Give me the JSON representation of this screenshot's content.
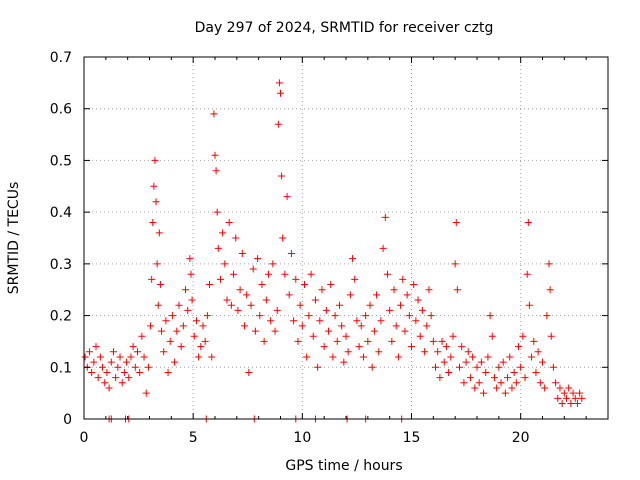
{
  "chart_data": {
    "type": "scatter",
    "title": "Day 297 of 2024, SRMTID for receiver cztg",
    "xlabel": "GPS time / hours",
    "ylabel": "SRMTID / TECUs",
    "xlim": [
      0,
      24
    ],
    "ylim": [
      0,
      0.7
    ],
    "xticks": [
      0,
      5,
      10,
      15,
      20
    ],
    "yticks": [
      0,
      0.1,
      0.2,
      0.3,
      0.4,
      0.5,
      0.6,
      0.7
    ],
    "grid": true,
    "marker": "+",
    "color": "#ff0000",
    "series": [
      {
        "name": "SRMTID",
        "points": [
          [
            0.05,
            0.12
          ],
          [
            0.15,
            0.1
          ],
          [
            0.25,
            0.13
          ],
          [
            0.35,
            0.09
          ],
          [
            0.45,
            0.11
          ],
          [
            0.55,
            0.14
          ],
          [
            0.65,
            0.08
          ],
          [
            0.75,
            0.12
          ],
          [
            0.85,
            0.1
          ],
          [
            0.95,
            0.07
          ],
          [
            1.05,
            0.09
          ],
          [
            1.15,
            0.06
          ],
          [
            1.25,
            0.11
          ],
          [
            1.35,
            0.13
          ],
          [
            1.45,
            0.08
          ],
          [
            1.55,
            0.1
          ],
          [
            1.65,
            0.12
          ],
          [
            1.75,
            0.07
          ],
          [
            1.85,
            0.09
          ],
          [
            1.95,
            0.11
          ],
          [
            2.05,
            0.08
          ],
          [
            2.15,
            0.12
          ],
          [
            2.25,
            0.14
          ],
          [
            2.35,
            0.1
          ],
          [
            2.45,
            0.13
          ],
          [
            2.55,
            0.09
          ],
          [
            2.65,
            0.16
          ],
          [
            2.75,
            0.12
          ],
          [
            2.85,
            0.05
          ],
          [
            2.95,
            0.1
          ],
          [
            3.05,
            0.18
          ],
          [
            3.1,
            0.27
          ],
          [
            3.15,
            0.38
          ],
          [
            3.2,
            0.45
          ],
          [
            3.25,
            0.5
          ],
          [
            3.3,
            0.42
          ],
          [
            3.35,
            0.3
          ],
          [
            3.4,
            0.22
          ],
          [
            3.45,
            0.36
          ],
          [
            3.5,
            0.26
          ],
          [
            3.55,
            0.17
          ],
          [
            3.65,
            0.13
          ],
          [
            3.75,
            0.19
          ],
          [
            3.85,
            0.09
          ],
          [
            3.95,
            0.15
          ],
          [
            4.05,
            0.2
          ],
          [
            4.15,
            0.11
          ],
          [
            4.25,
            0.17
          ],
          [
            4.35,
            0.22
          ],
          [
            4.45,
            0.14
          ],
          [
            4.55,
            0.18
          ],
          [
            4.65,
            0.25
          ],
          [
            4.75,
            0.21
          ],
          [
            4.85,
            0.31
          ],
          [
            4.9,
            0.28
          ],
          [
            4.95,
            0.23
          ],
          [
            5.05,
            0.16
          ],
          [
            5.15,
            0.19
          ],
          [
            5.25,
            0.12
          ],
          [
            5.35,
            0.14
          ],
          [
            5.45,
            0.18
          ],
          [
            5.55,
            0.15
          ],
          [
            5.65,
            0.2
          ],
          [
            5.75,
            0.26
          ],
          [
            5.85,
            0.12
          ],
          [
            5.95,
            0.59
          ],
          [
            6.0,
            0.51
          ],
          [
            6.05,
            0.48
          ],
          [
            6.1,
            0.4
          ],
          [
            6.15,
            0.33
          ],
          [
            6.25,
            0.27
          ],
          [
            6.35,
            0.36
          ],
          [
            6.45,
            0.3
          ],
          [
            6.55,
            0.23
          ],
          [
            6.65,
            0.38
          ],
          [
            6.75,
            0.22
          ],
          [
            6.85,
            0.28
          ],
          [
            6.95,
            0.35
          ],
          [
            7.05,
            0.21
          ],
          [
            7.15,
            0.25
          ],
          [
            7.25,
            0.32
          ],
          [
            7.35,
            0.18
          ],
          [
            7.45,
            0.24
          ],
          [
            7.55,
            0.09
          ],
          [
            7.65,
            0.22
          ],
          [
            7.75,
            0.29
          ],
          [
            7.85,
            0.17
          ],
          [
            7.95,
            0.31
          ],
          [
            8.05,
            0.2
          ],
          [
            8.15,
            0.26
          ],
          [
            8.25,
            0.15
          ],
          [
            8.35,
            0.23
          ],
          [
            8.45,
            0.28
          ],
          [
            8.55,
            0.19
          ],
          [
            8.65,
            0.3
          ],
          [
            8.75,
            0.17
          ],
          [
            8.85,
            0.21
          ],
          [
            8.9,
            0.57
          ],
          [
            8.95,
            0.65
          ],
          [
            9.0,
            0.63
          ],
          [
            9.05,
            0.47
          ],
          [
            9.1,
            0.35
          ],
          [
            9.2,
            0.28
          ],
          [
            9.3,
            0.43
          ],
          [
            9.4,
            0.24
          ],
          [
            9.5,
            0.32
          ],
          [
            9.6,
            0.19
          ],
          [
            9.7,
            0.27
          ],
          [
            9.8,
            0.15
          ],
          [
            9.9,
            0.22
          ],
          [
            10.0,
            0.18
          ],
          [
            10.1,
            0.26
          ],
          [
            10.2,
            0.12
          ],
          [
            10.3,
            0.2
          ],
          [
            10.4,
            0.28
          ],
          [
            10.5,
            0.16
          ],
          [
            10.6,
            0.23
          ],
          [
            10.7,
            0.1
          ],
          [
            10.8,
            0.19
          ],
          [
            10.9,
            0.25
          ],
          [
            11.0,
            0.14
          ],
          [
            11.1,
            0.21
          ],
          [
            11.2,
            0.17
          ],
          [
            11.3,
            0.26
          ],
          [
            11.4,
            0.12
          ],
          [
            11.5,
            0.2
          ],
          [
            11.6,
            0.15
          ],
          [
            11.7,
            0.22
          ],
          [
            11.8,
            0.18
          ],
          [
            11.9,
            0.11
          ],
          [
            12.0,
            0.16
          ],
          [
            12.1,
            0.13
          ],
          [
            12.2,
            0.24
          ],
          [
            12.3,
            0.31
          ],
          [
            12.4,
            0.27
          ],
          [
            12.5,
            0.19
          ],
          [
            12.6,
            0.14
          ],
          [
            12.7,
            0.18
          ],
          [
            12.8,
            0.12
          ],
          [
            12.9,
            0.2
          ],
          [
            13.0,
            0.15
          ],
          [
            13.1,
            0.22
          ],
          [
            13.2,
            0.1
          ],
          [
            13.3,
            0.17
          ],
          [
            13.4,
            0.24
          ],
          [
            13.5,
            0.13
          ],
          [
            13.6,
            0.19
          ],
          [
            13.7,
            0.33
          ],
          [
            13.8,
            0.39
          ],
          [
            13.9,
            0.28
          ],
          [
            14.0,
            0.21
          ],
          [
            14.1,
            0.15
          ],
          [
            14.2,
            0.25
          ],
          [
            14.3,
            0.18
          ],
          [
            14.4,
            0.12
          ],
          [
            14.5,
            0.22
          ],
          [
            14.6,
            0.27
          ],
          [
            14.7,
            0.17
          ],
          [
            14.8,
            0.24
          ],
          [
            14.9,
            0.2
          ],
          [
            15.0,
            0.14
          ],
          [
            15.1,
            0.26
          ],
          [
            15.2,
            0.19
          ],
          [
            15.3,
            0.23
          ],
          [
            15.4,
            0.16
          ],
          [
            15.5,
            0.21
          ],
          [
            15.6,
            0.13
          ],
          [
            15.7,
            0.18
          ],
          [
            15.8,
            0.25
          ],
          [
            15.9,
            0.2
          ],
          [
            16.0,
            0.15
          ],
          [
            16.1,
            0.1
          ],
          [
            16.2,
            0.13
          ],
          [
            16.3,
            0.08
          ],
          [
            16.4,
            0.15
          ],
          [
            16.5,
            0.11
          ],
          [
            16.6,
            0.14
          ],
          [
            16.7,
            0.09
          ],
          [
            16.8,
            0.12
          ],
          [
            16.9,
            0.16
          ],
          [
            17.0,
            0.3
          ],
          [
            17.05,
            0.38
          ],
          [
            17.1,
            0.25
          ],
          [
            17.2,
            0.1
          ],
          [
            17.3,
            0.14
          ],
          [
            17.4,
            0.07
          ],
          [
            17.5,
            0.11
          ],
          [
            17.6,
            0.13
          ],
          [
            17.7,
            0.08
          ],
          [
            17.8,
            0.12
          ],
          [
            17.9,
            0.06
          ],
          [
            18.0,
            0.1
          ],
          [
            18.1,
            0.07
          ],
          [
            18.2,
            0.11
          ],
          [
            18.3,
            0.05
          ],
          [
            18.4,
            0.09
          ],
          [
            18.5,
            0.12
          ],
          [
            18.6,
            0.2
          ],
          [
            18.7,
            0.16
          ],
          [
            18.8,
            0.08
          ],
          [
            18.9,
            0.06
          ],
          [
            19.0,
            0.1
          ],
          [
            19.1,
            0.07
          ],
          [
            19.2,
            0.11
          ],
          [
            19.3,
            0.05
          ],
          [
            19.4,
            0.08
          ],
          [
            19.5,
            0.12
          ],
          [
            19.6,
            0.06
          ],
          [
            19.7,
            0.09
          ],
          [
            19.8,
            0.07
          ],
          [
            19.9,
            0.14
          ],
          [
            20.0,
            0.1
          ],
          [
            20.1,
            0.16
          ],
          [
            20.2,
            0.08
          ],
          [
            20.3,
            0.28
          ],
          [
            20.35,
            0.38
          ],
          [
            20.4,
            0.22
          ],
          [
            20.5,
            0.12
          ],
          [
            20.6,
            0.15
          ],
          [
            20.7,
            0.09
          ],
          [
            20.8,
            0.13
          ],
          [
            20.9,
            0.07
          ],
          [
            21.0,
            0.11
          ],
          [
            21.1,
            0.06
          ],
          [
            21.2,
            0.2
          ],
          [
            21.3,
            0.3
          ],
          [
            21.35,
            0.25
          ],
          [
            21.4,
            0.16
          ],
          [
            21.5,
            0.1
          ],
          [
            21.6,
            0.07
          ],
          [
            21.7,
            0.04
          ],
          [
            21.8,
            0.06
          ],
          [
            21.9,
            0.03
          ],
          [
            22.0,
            0.05
          ],
          [
            22.1,
            0.04
          ],
          [
            22.2,
            0.06
          ],
          [
            22.3,
            0.03
          ],
          [
            22.4,
            0.05
          ],
          [
            22.5,
            0.04
          ],
          [
            22.6,
            0.03
          ],
          [
            22.7,
            0.05
          ],
          [
            22.8,
            0.04
          ],
          [
            1.15,
            0.0
          ],
          [
            1.25,
            0.0
          ],
          [
            1.9,
            0.0
          ],
          [
            2.05,
            0.0
          ],
          [
            5.6,
            0.0
          ],
          [
            7.8,
            0.0
          ],
          [
            9.7,
            0.0
          ],
          [
            10.6,
            0.0
          ],
          [
            12.05,
            0.0
          ],
          [
            12.9,
            0.0
          ],
          [
            14.55,
            0.0
          ]
        ]
      }
    ]
  }
}
